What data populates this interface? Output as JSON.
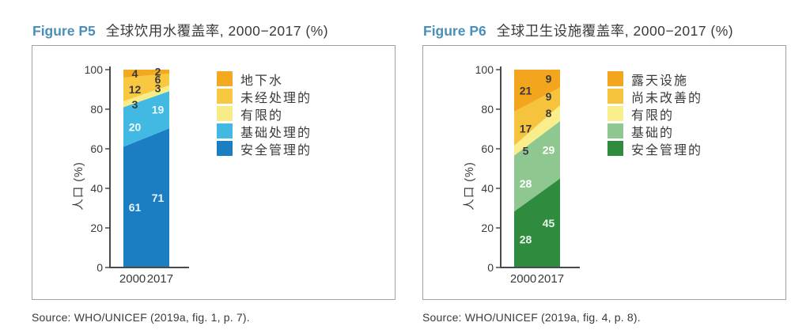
{
  "figures": [
    {
      "label": "Figure P5",
      "title": "全球饮用水覆盖率, 2000−2017 (%)",
      "source": "Source: WHO/UNICEF (2019a, fig. 1, p. 7)."
    },
    {
      "label": "Figure P6",
      "title": "全球卫生设施覆盖率, 2000−2017 (%)",
      "source": "Source: WHO/UNICEF (2019a, fig. 4, p. 8)."
    }
  ],
  "chart_data": [
    {
      "type": "area",
      "title": "全球饮用水覆盖率, 2000−2017 (%)",
      "categories": [
        "2000",
        "2017"
      ],
      "ylabel": "人口 (%)",
      "ylim": [
        0,
        100
      ],
      "yticks": [
        0,
        20,
        40,
        60,
        80,
        100
      ],
      "grid": false,
      "legend_position": "right",
      "stack_order": "bottom-to-top",
      "series": [
        {
          "name": "安全管理的",
          "values": [
            61,
            71
          ],
          "color": "#1b7ec2",
          "label_color": "#e8f5fb"
        },
        {
          "name": "基础处理的",
          "values": [
            20,
            19
          ],
          "color": "#41b9e3",
          "label_color": "#f0fafd"
        },
        {
          "name": "有限的",
          "values": [
            3,
            3
          ],
          "color": "#f7ec86",
          "label_color": "#3a3a3a"
        },
        {
          "name": "未经处理的",
          "values": [
            12,
            6
          ],
          "color": "#f9c841",
          "label_color": "#3a3a3a"
        },
        {
          "name": "地下水",
          "values": [
            4,
            2
          ],
          "color": "#f2a81f",
          "label_color": "#3a3a3a"
        }
      ]
    },
    {
      "type": "area",
      "title": "全球卫生设施覆盖率, 2000−2017 (%)",
      "categories": [
        "2000",
        "2017"
      ],
      "ylabel": "人口 (%)",
      "ylim": [
        0,
        100
      ],
      "yticks": [
        0,
        20,
        40,
        60,
        80,
        100
      ],
      "grid": false,
      "legend_position": "right",
      "stack_order": "bottom-to-top",
      "series": [
        {
          "name": "安全管理的",
          "values": [
            28,
            45
          ],
          "color": "#2f8c3f",
          "label_color": "#eaf5ea"
        },
        {
          "name": "基础的",
          "values": [
            28,
            29
          ],
          "color": "#8fc791",
          "label_color": "#ffffff"
        },
        {
          "name": "有限的",
          "values": [
            5,
            8
          ],
          "color": "#f9ee8b",
          "label_color": "#3a3a3a"
        },
        {
          "name": "尚未改善的",
          "values": [
            17,
            9
          ],
          "color": "#f6c33d",
          "label_color": "#3a3a3a"
        },
        {
          "name": "露天设施",
          "values": [
            21,
            9
          ],
          "color": "#f2a51d",
          "label_color": "#3a3a3a"
        }
      ]
    }
  ],
  "theme": {
    "figure_label_color": "#4a8fb8",
    "axis_color": "#4a4a4a",
    "text_color": "#3a3a3a",
    "box_border_color": "#99a4ab",
    "background": "#ffffff"
  }
}
